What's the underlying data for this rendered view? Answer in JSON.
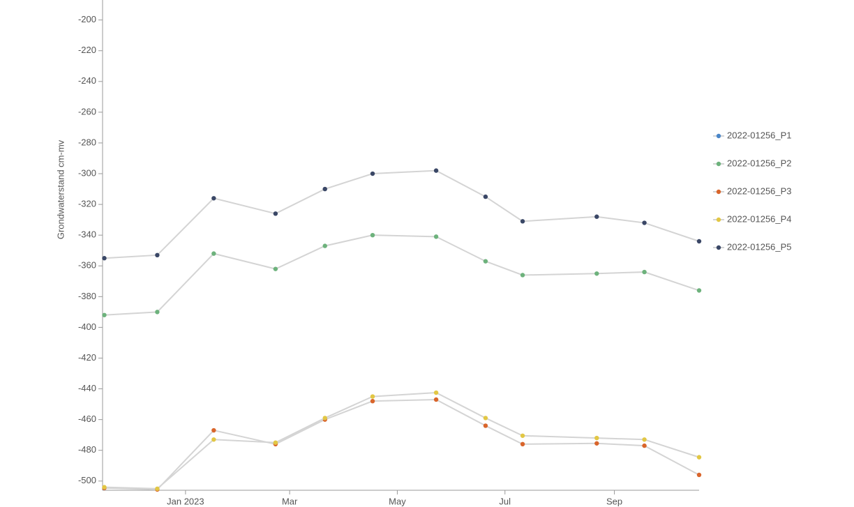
{
  "chart_data": {
    "type": "line",
    "y_label": "Grondwaterstand cm-mv",
    "x": [
      "2022-11-16",
      "2022-12-16",
      "2023-01-17",
      "2023-02-21",
      "2023-03-21",
      "2023-04-17",
      "2023-05-23",
      "2023-06-20",
      "2023-07-11",
      "2023-08-22",
      "2023-09-18",
      "2023-10-19"
    ],
    "xlim": [
      "2022-11-15",
      "2023-10-19"
    ],
    "xticks": [
      {
        "value": "2023-01-01",
        "label": "Jan 2023"
      },
      {
        "value": "2023-03-01",
        "label": "Mar"
      },
      {
        "value": "2023-05-01",
        "label": "May"
      },
      {
        "value": "2023-07-01",
        "label": "Jul"
      },
      {
        "value": "2023-09-01",
        "label": "Sep"
      }
    ],
    "ylim": [
      -506,
      -187
    ],
    "yticks": [
      -200,
      -220,
      -240,
      -260,
      -280,
      -300,
      -320,
      -340,
      -360,
      -380,
      -400,
      -420,
      -440,
      -460,
      -480,
      -500
    ],
    "line_color": "#d4d4d4",
    "legend": "right",
    "series": [
      {
        "name": "2022-01256_P1",
        "color": "#4a86c8",
        "values": [
          null,
          null,
          null,
          null,
          null,
          null,
          null,
          null,
          null,
          null,
          null,
          null
        ]
      },
      {
        "name": "2022-01256_P2",
        "color": "#6db27c",
        "values": [
          -392,
          -390,
          -352,
          -362,
          -347,
          -340,
          -341,
          -357,
          -366,
          -365,
          -364,
          -376
        ]
      },
      {
        "name": "2022-01256_P3",
        "color": "#d9652b",
        "values": [
          -504.5,
          -505.5,
          -467,
          -476,
          -460,
          -448,
          -447,
          -464,
          -476,
          -475.5,
          -477,
          -496
        ]
      },
      {
        "name": "2022-01256_P4",
        "color": "#e2c744",
        "values": [
          -504,
          -505,
          -473,
          -475,
          -459,
          -445,
          -442.5,
          -459,
          -470.5,
          -472,
          -473,
          -484.5
        ]
      },
      {
        "name": "2022-01256_P5",
        "color": "#3a4766",
        "values": [
          -355,
          -353,
          -316,
          -326,
          -310,
          -300,
          -298,
          -315,
          -331,
          -328,
          -332,
          -344
        ]
      }
    ]
  }
}
